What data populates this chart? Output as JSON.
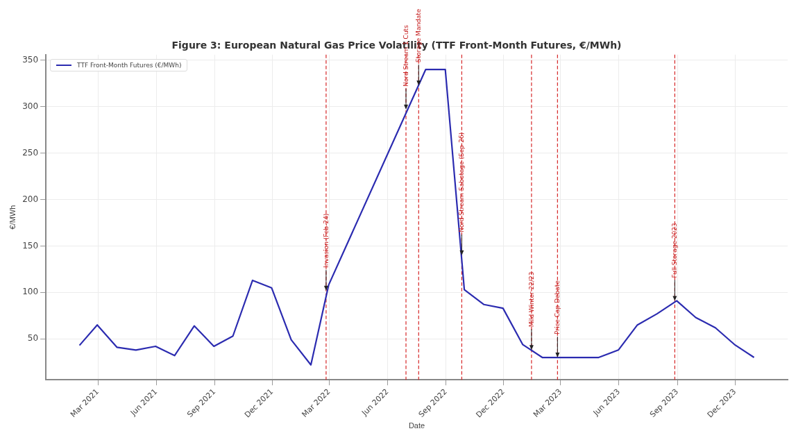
{
  "chart_data": {
    "type": "line",
    "title": "Figure 3: European Natural Gas Price Volatility (TTF Front-Month Futures, €/MWh)",
    "xlabel": "Date",
    "ylabel": "€/MWh",
    "x": [
      "2021-01-31",
      "2021-02-28",
      "2021-03-31",
      "2021-04-30",
      "2021-05-31",
      "2021-06-30",
      "2021-07-31",
      "2021-08-31",
      "2021-09-30",
      "2021-10-31",
      "2021-11-30",
      "2021-12-31",
      "2022-01-31",
      "2022-02-28",
      "2022-07-31",
      "2022-08-31",
      "2022-09-30",
      "2022-10-31",
      "2022-11-30",
      "2022-12-31",
      "2023-01-31",
      "2023-02-28",
      "2023-03-31",
      "2023-04-30",
      "2023-05-31",
      "2023-06-30",
      "2023-07-31",
      "2023-08-31",
      "2023-09-30",
      "2023-10-31",
      "2023-11-30",
      "2023-12-31"
    ],
    "series": [
      {
        "name": "TTF Front-Month Futures (€/MWh)",
        "color": "#2b2bb0",
        "values": [
          43,
          65,
          41,
          38,
          42,
          32,
          64,
          42,
          53,
          113,
          105,
          49,
          22,
          108,
          340,
          340,
          103,
          87,
          83,
          44,
          30,
          30,
          30,
          30,
          38,
          65,
          77,
          91,
          73,
          62,
          44,
          30
        ]
      }
    ],
    "xlim": [
      "2020-12-09",
      "2024-02-22"
    ],
    "xticks": [
      {
        "value": "2021-03-01",
        "label": "Mar 2021"
      },
      {
        "value": "2021-06-01",
        "label": "Jun 2021"
      },
      {
        "value": "2021-09-01",
        "label": "Sep 2021"
      },
      {
        "value": "2021-12-01",
        "label": "Dec 2021"
      },
      {
        "value": "2022-03-01",
        "label": "Mar 2022"
      },
      {
        "value": "2022-06-01",
        "label": "Jun 2022"
      },
      {
        "value": "2022-09-01",
        "label": "Sep 2022"
      },
      {
        "value": "2022-12-01",
        "label": "Dec 2022"
      },
      {
        "value": "2023-03-01",
        "label": "Mar 2023"
      },
      {
        "value": "2023-06-01",
        "label": "Jun 2023"
      },
      {
        "value": "2023-09-01",
        "label": "Sep 2023"
      },
      {
        "value": "2023-12-01",
        "label": "Dec 2023"
      }
    ],
    "ylim": [
      6,
      356
    ],
    "yticks": [
      50,
      100,
      150,
      200,
      250,
      300,
      350
    ],
    "ref_lines": [
      {
        "axis": "x",
        "value": "2022-02-24",
        "color": "#d62728",
        "line_style": "dashed"
      },
      {
        "axis": "x",
        "value": "2022-06-30",
        "color": "#d62728",
        "line_style": "dashed"
      },
      {
        "axis": "x",
        "value": "2022-07-20",
        "color": "#d62728",
        "line_style": "dashed"
      },
      {
        "axis": "x",
        "value": "2022-09-26",
        "color": "#d62728",
        "line_style": "dashed"
      },
      {
        "axis": "x",
        "value": "2023-01-14",
        "color": "#d62728",
        "line_style": "dashed"
      },
      {
        "axis": "x",
        "value": "2023-02-24",
        "color": "#d62728",
        "line_style": "dashed"
      },
      {
        "axis": "x",
        "value": "2023-08-28",
        "color": "#d62728",
        "line_style": "dashed"
      }
    ],
    "annotations": [
      {
        "text": "Invasion (Feb-24)",
        "x": "2022-02-24",
        "y": 102
      },
      {
        "text": "Nord Stream 1 Cuts",
        "x": "2022-06-30",
        "y": 297
      },
      {
        "text": "Storage Mandate",
        "x": "2022-07-20",
        "y": 323
      },
      {
        "text": "Nord Stream Sabotage (Sep-26)",
        "x": "2022-09-26",
        "y": 140
      },
      {
        "text": "Mild Winter 22/23",
        "x": "2023-01-14",
        "y": 38
      },
      {
        "text": "Price Cap Debate",
        "x": "2023-02-24",
        "y": 30
      },
      {
        "text": "Full Storage 2023",
        "x": "2023-08-28",
        "y": 91
      }
    ],
    "grid": true,
    "legend": "top left",
    "marker": "none",
    "line_style": "solid"
  }
}
